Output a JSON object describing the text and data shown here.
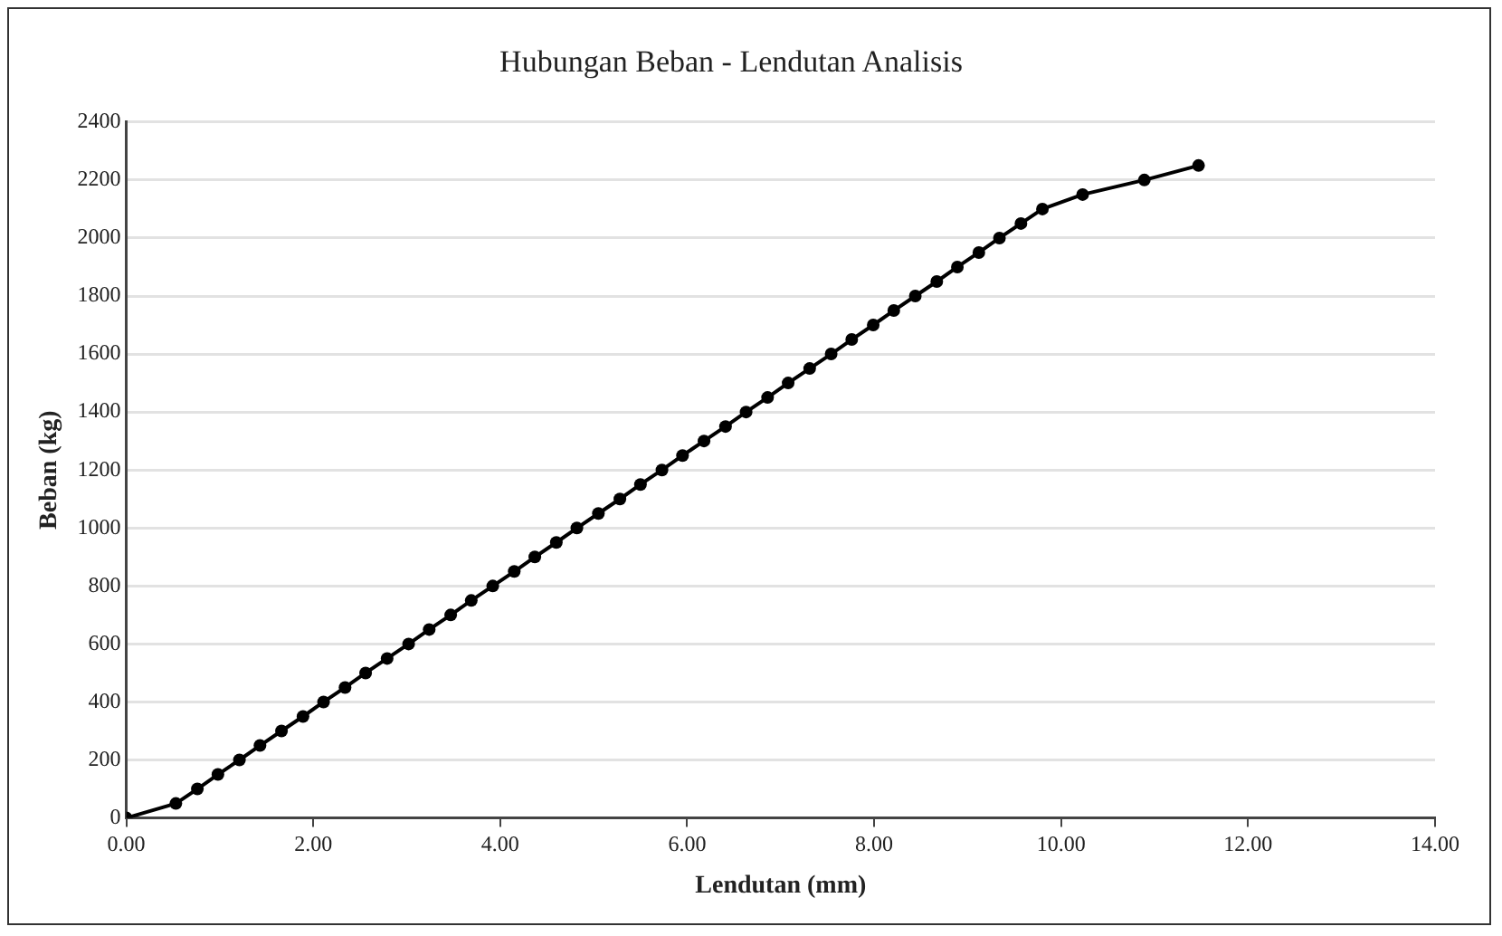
{
  "chart_data": {
    "type": "line",
    "title": "Hubungan Beban - Lendutan Analisis",
    "xlabel": "Lendutan (mm)",
    "ylabel": "Beban (kg)",
    "series": [
      {
        "color": "#000000",
        "x": [
          0,
          0.53,
          0.76,
          0.98,
          1.21,
          1.43,
          1.66,
          1.89,
          2.11,
          2.34,
          2.56,
          2.79,
          3.02,
          3.24,
          3.47,
          3.69,
          3.92,
          4.15,
          4.37,
          4.6,
          4.82,
          5.05,
          5.28,
          5.5,
          5.73,
          5.95,
          6.18,
          6.41,
          6.63,
          6.86,
          7.08,
          7.31,
          7.54,
          7.76,
          7.99,
          8.21,
          8.44,
          8.67,
          8.89,
          9.12,
          9.34,
          9.57,
          9.8,
          10.23,
          10.89,
          11.47
        ],
        "values": [
          0,
          50,
          100,
          150,
          200,
          250,
          300,
          350,
          400,
          450,
          500,
          550,
          600,
          650,
          700,
          750,
          800,
          850,
          900,
          950,
          1000,
          1050,
          1100,
          1150,
          1200,
          1250,
          1300,
          1350,
          1400,
          1450,
          1500,
          1550,
          1600,
          1650,
          1700,
          1750,
          1800,
          1850,
          1900,
          1950,
          2000,
          2050,
          2100,
          2150,
          2200,
          2250
        ]
      }
    ],
    "xlim": [
      0,
      14
    ],
    "xticks": [
      {
        "value": 0,
        "label": "0.00"
      },
      {
        "value": 2,
        "label": "2.00"
      },
      {
        "value": 4,
        "label": "4.00"
      },
      {
        "value": 6,
        "label": "6.00"
      },
      {
        "value": 8,
        "label": "8.00"
      },
      {
        "value": 10,
        "label": "10.00"
      },
      {
        "value": 12,
        "label": "12.00"
      },
      {
        "value": 14,
        "label": "14.00"
      }
    ],
    "ylim": [
      0,
      2400
    ],
    "yticks": [
      0,
      200,
      400,
      600,
      800,
      1000,
      1200,
      1400,
      1600,
      1800,
      2000,
      2200,
      2400
    ],
    "grid": "y",
    "legend": false,
    "marker": "circle",
    "line_style": "solid"
  }
}
